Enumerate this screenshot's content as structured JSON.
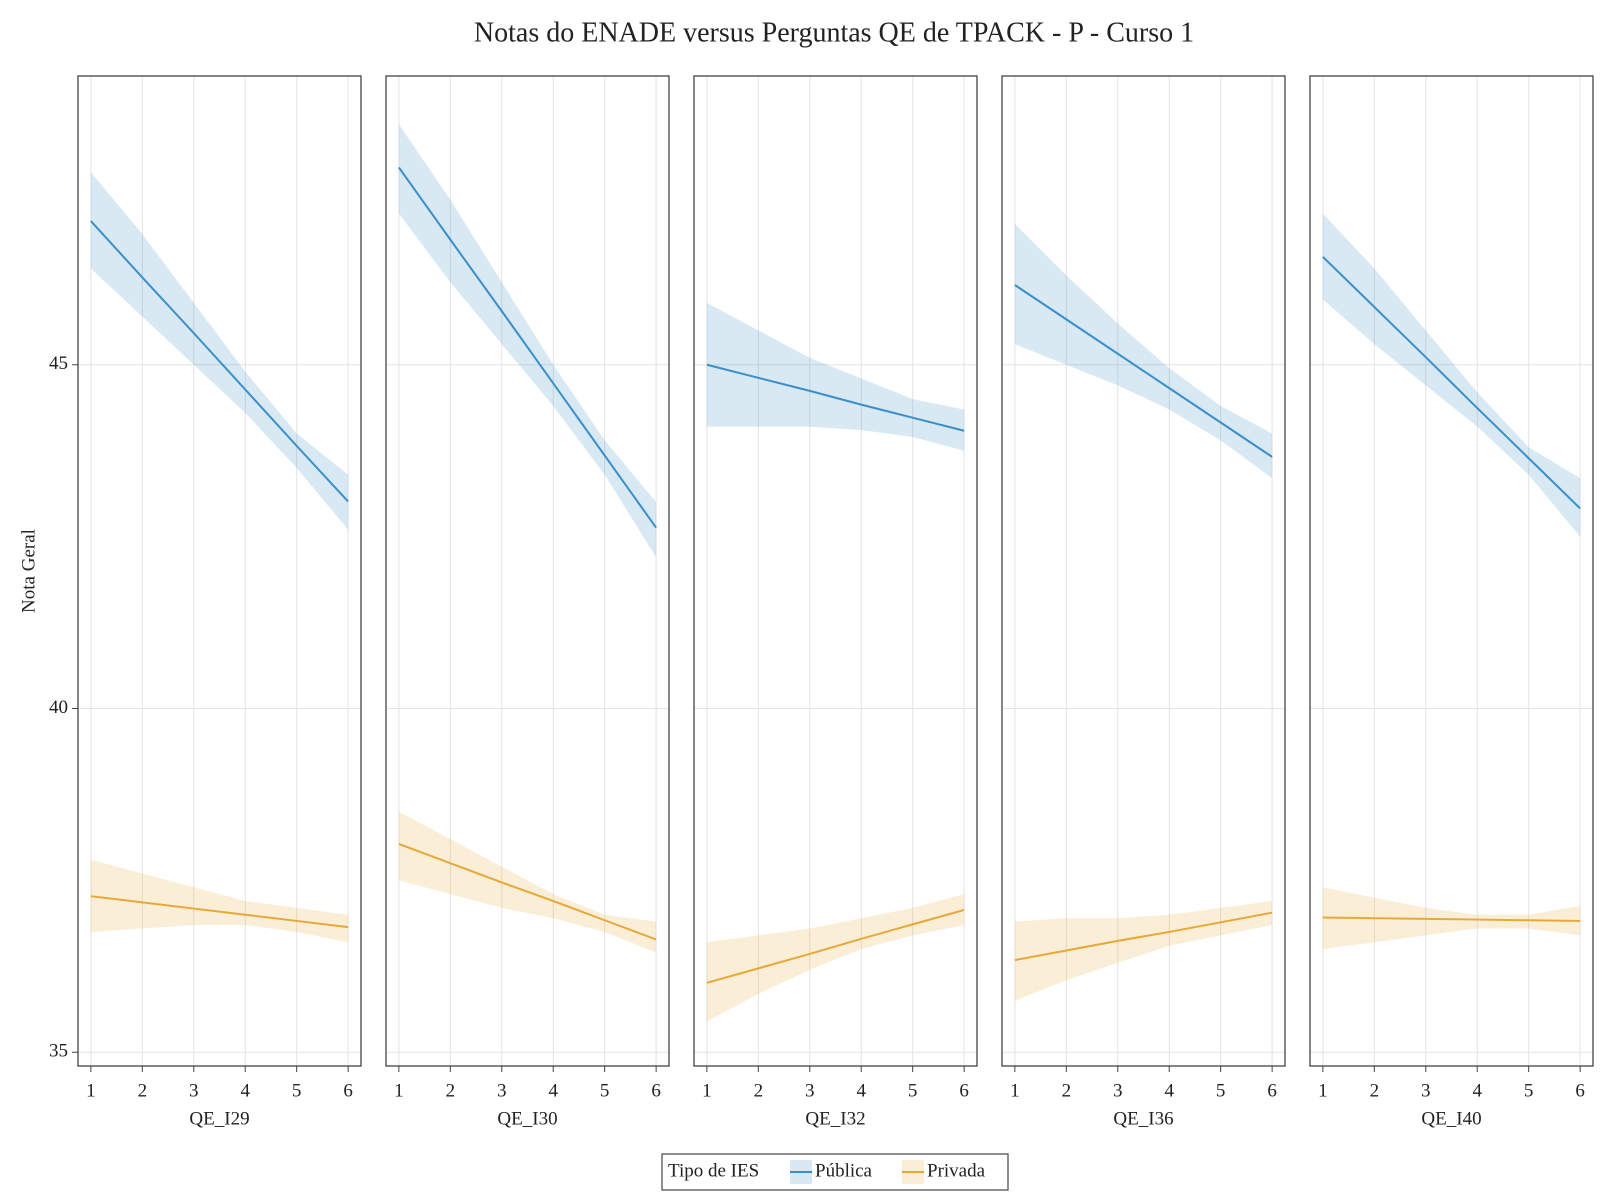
{
  "chart_data": {
    "type": "line",
    "title": "Notas do ENADE versus Perguntas QE de TPACK - P - Curso 1",
    "y_label": "Nota Geral",
    "legend_title": "Tipo de IES",
    "grid": true,
    "ylim": [
      34.8,
      49.2
    ],
    "yticks": [
      35,
      40,
      45
    ],
    "xlim": [
      0.75,
      6.25
    ],
    "xticks": [
      1,
      2,
      3,
      4,
      5,
      6
    ],
    "x": [
      1,
      2,
      3,
      4,
      5,
      6
    ],
    "panels": [
      {
        "x_label": "QE_I29"
      },
      {
        "x_label": "QE_I30"
      },
      {
        "x_label": "QE_I32"
      },
      {
        "x_label": "QE_I36"
      },
      {
        "x_label": "QE_I40"
      }
    ],
    "series": [
      {
        "name": "Pública",
        "color": "#3a8fc9",
        "values": [
          [
            47.09,
            46.27,
            45.46,
            44.64,
            43.82,
            43.01
          ],
          [
            47.87,
            46.82,
            45.78,
            44.73,
            43.68,
            42.63
          ],
          [
            45.0,
            44.81,
            44.62,
            44.42,
            44.23,
            44.04
          ],
          [
            46.16,
            45.66,
            45.16,
            44.66,
            44.16,
            43.66
          ],
          [
            46.57,
            45.84,
            45.11,
            44.37,
            43.64,
            42.91
          ]
        ],
        "upper": [
          [
            47.8,
            46.9,
            45.9,
            44.9,
            44.0,
            43.4
          ],
          [
            48.5,
            47.4,
            46.2,
            45.0,
            43.9,
            43.0
          ],
          [
            45.9,
            45.5,
            45.1,
            44.8,
            44.5,
            44.35
          ],
          [
            47.05,
            46.3,
            45.6,
            44.95,
            44.4,
            44.0
          ],
          [
            47.2,
            46.4,
            45.5,
            44.6,
            43.8,
            43.35
          ]
        ],
        "lower": [
          [
            46.4,
            45.7,
            45.0,
            44.3,
            43.5,
            42.6
          ],
          [
            47.2,
            46.2,
            45.3,
            44.4,
            43.4,
            42.2
          ],
          [
            44.1,
            44.1,
            44.1,
            44.05,
            43.95,
            43.75
          ],
          [
            45.3,
            45.0,
            44.7,
            44.35,
            43.9,
            43.35
          ],
          [
            45.95,
            45.3,
            44.7,
            44.1,
            43.4,
            42.5
          ]
        ]
      },
      {
        "name": "Privada",
        "color": "#e8a838",
        "values": [
          [
            37.27,
            37.18,
            37.09,
            37.0,
            36.91,
            36.82
          ],
          [
            38.03,
            37.75,
            37.47,
            37.2,
            36.92,
            36.64
          ],
          [
            36.01,
            36.22,
            36.43,
            36.65,
            36.86,
            37.07
          ],
          [
            36.34,
            36.48,
            36.62,
            36.75,
            36.89,
            37.03
          ],
          [
            36.96,
            36.95,
            36.94,
            36.93,
            36.92,
            36.91
          ]
        ],
        "upper": [
          [
            37.8,
            37.6,
            37.4,
            37.2,
            37.1,
            37.0
          ],
          [
            38.5,
            38.1,
            37.7,
            37.3,
            37.0,
            36.9
          ],
          [
            36.6,
            36.7,
            36.8,
            36.95,
            37.1,
            37.3
          ],
          [
            36.9,
            36.95,
            36.95,
            37.0,
            37.1,
            37.2
          ],
          [
            37.4,
            37.25,
            37.1,
            37.0,
            37.0,
            37.13
          ]
        ],
        "lower": [
          [
            36.75,
            36.8,
            36.85,
            36.85,
            36.75,
            36.6
          ],
          [
            37.5,
            37.3,
            37.1,
            36.95,
            36.75,
            36.45
          ],
          [
            35.45,
            35.85,
            36.2,
            36.5,
            36.7,
            36.85
          ],
          [
            35.75,
            36.05,
            36.3,
            36.55,
            36.7,
            36.85
          ],
          [
            36.5,
            36.6,
            36.7,
            36.8,
            36.8,
            36.7
          ]
        ]
      }
    ]
  }
}
